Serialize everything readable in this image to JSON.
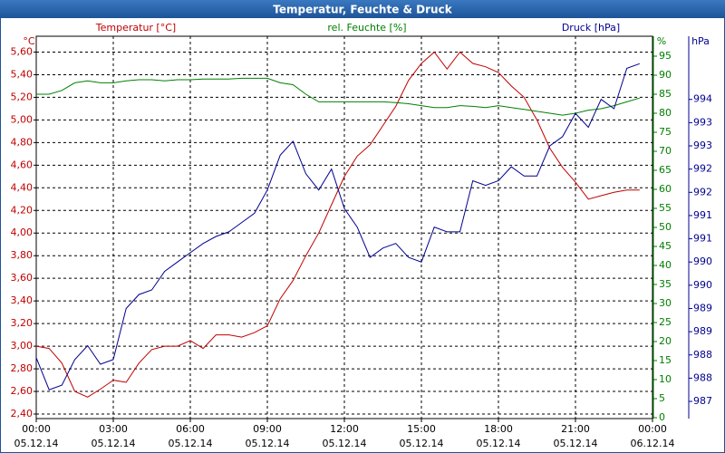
{
  "chart_data": {
    "type": "line",
    "title": "Temperatur, Feuchte & Druck",
    "x": [
      0,
      0.5,
      1,
      1.5,
      2,
      2.5,
      3,
      3.5,
      4,
      4.5,
      5,
      5.5,
      6,
      6.5,
      7,
      7.5,
      8,
      8.5,
      9,
      9.5,
      10,
      10.5,
      11,
      11.5,
      12,
      12.5,
      13,
      13.5,
      14,
      14.5,
      15,
      15.5,
      16,
      16.5,
      17,
      17.5,
      18,
      18.5,
      19,
      19.5,
      20,
      20.5,
      21,
      21.5,
      22,
      22.5,
      23,
      23.5
    ],
    "xlim": [
      0,
      24
    ],
    "xticks": [
      {
        "value": 0,
        "label": "00:00",
        "date": "05.12.14"
      },
      {
        "value": 3,
        "label": "03:00",
        "date": "05.12.14"
      },
      {
        "value": 6,
        "label": "06:00",
        "date": "05.12.14"
      },
      {
        "value": 9,
        "label": "09:00",
        "date": "05.12.14"
      },
      {
        "value": 12,
        "label": "12:00",
        "date": "05.12.14"
      },
      {
        "value": 15,
        "label": "15:00",
        "date": "05.12.14"
      },
      {
        "value": 18,
        "label": "18:00",
        "date": "05.12.14"
      },
      {
        "value": 21,
        "label": "21:00",
        "date": "05.12.14"
      },
      {
        "value": 24,
        "label": "00:00",
        "date": "06.12.14"
      }
    ],
    "series": [
      {
        "name": "Temperatur [°C]",
        "color": "#c00000",
        "axis": "y",
        "values": [
          3.0,
          2.98,
          2.85,
          2.6,
          2.55,
          2.62,
          2.7,
          2.68,
          2.85,
          2.97,
          3.0,
          3.0,
          3.05,
          2.98,
          3.1,
          3.1,
          3.08,
          3.12,
          3.18,
          3.42,
          3.58,
          3.8,
          4.0,
          4.25,
          4.5,
          4.68,
          4.78,
          4.95,
          5.12,
          5.35,
          5.5,
          5.6,
          5.45,
          5.6,
          5.5,
          5.47,
          5.42,
          5.3,
          5.2,
          5.0,
          4.75,
          4.58,
          4.45,
          4.3,
          4.33,
          4.36,
          4.38,
          4.38
        ]
      },
      {
        "name": "rel. Feuchte [%]",
        "color": "#008000",
        "axis": "y2",
        "values": [
          85,
          85,
          86,
          88,
          88.5,
          88,
          88,
          88.5,
          88.8,
          88.8,
          88.5,
          88.8,
          88.8,
          89,
          89,
          89,
          89.2,
          89.2,
          89.2,
          88,
          87.5,
          85,
          83,
          83,
          83,
          83,
          83,
          83,
          82.8,
          82.5,
          82,
          81.5,
          81.5,
          82,
          81.8,
          81.5,
          82,
          81.5,
          81,
          80.5,
          80,
          79.5,
          80,
          80.8,
          81.2,
          82,
          83,
          84
        ]
      },
      {
        "name": "Druck [hPa]",
        "color": "#000090",
        "axis": "y3",
        "values": [
          987.94,
          987.25,
          987.35,
          987.9,
          988.2,
          987.8,
          987.9,
          989.0,
          989.3,
          989.4,
          989.8,
          990.0,
          990.2,
          990.4,
          990.55,
          990.65,
          990.85,
          991.05,
          991.55,
          992.3,
          992.6,
          991.9,
          991.55,
          992.0,
          991.15,
          990.75,
          990.1,
          990.3,
          990.4,
          990.1,
          990.0,
          990.75,
          990.65,
          990.65,
          991.75,
          991.65,
          991.75,
          992.05,
          991.85,
          991.85,
          992.5,
          992.7,
          993.2,
          992.9,
          993.5,
          993.3,
          994.17,
          994.27
        ]
      }
    ],
    "y_unit": "°C",
    "ylim": [
      2.36,
      5.74
    ],
    "yticks": [
      {
        "value": 2.4,
        "label": "2,40"
      },
      {
        "value": 2.6,
        "label": "2,60"
      },
      {
        "value": 2.8,
        "label": "2,80"
      },
      {
        "value": 3.0,
        "label": "3,00"
      },
      {
        "value": 3.2,
        "label": "3,20"
      },
      {
        "value": 3.4,
        "label": "3,40"
      },
      {
        "value": 3.6,
        "label": "3,60"
      },
      {
        "value": 3.8,
        "label": "3,80"
      },
      {
        "value": 4.0,
        "label": "4,00"
      },
      {
        "value": 4.2,
        "label": "4,20"
      },
      {
        "value": 4.4,
        "label": "4,40"
      },
      {
        "value": 4.6,
        "label": "4,60"
      },
      {
        "value": 4.8,
        "label": "4,80"
      },
      {
        "value": 5.0,
        "label": "5,00"
      },
      {
        "value": 5.2,
        "label": "5,20"
      },
      {
        "value": 5.4,
        "label": "5,40"
      },
      {
        "value": 5.6,
        "label": "5,60"
      }
    ],
    "y2_unit": "%",
    "y2lim": [
      -0.24,
      100.24
    ],
    "y2ticks": [
      0,
      5,
      10,
      15,
      20,
      25,
      30,
      35,
      40,
      45,
      50,
      55,
      60,
      65,
      70,
      75,
      80,
      85,
      90,
      95
    ],
    "y3_unit": "hPa",
    "y3lim": [
      986.63,
      994.86
    ],
    "y3ticks": [
      987,
      {
        "value": 987.5,
        "label": "988"
      },
      988,
      {
        "value": 988.5,
        "label": "989"
      },
      989,
      {
        "value": 989.5,
        "label": "990"
      },
      990,
      {
        "value": 990.5,
        "label": "991"
      },
      991,
      {
        "value": 991.5,
        "label": "992"
      },
      992,
      {
        "value": 992.5,
        "label": "993"
      },
      993,
      {
        "value": 993.5,
        "label": "994"
      }
    ],
    "grid": true
  }
}
